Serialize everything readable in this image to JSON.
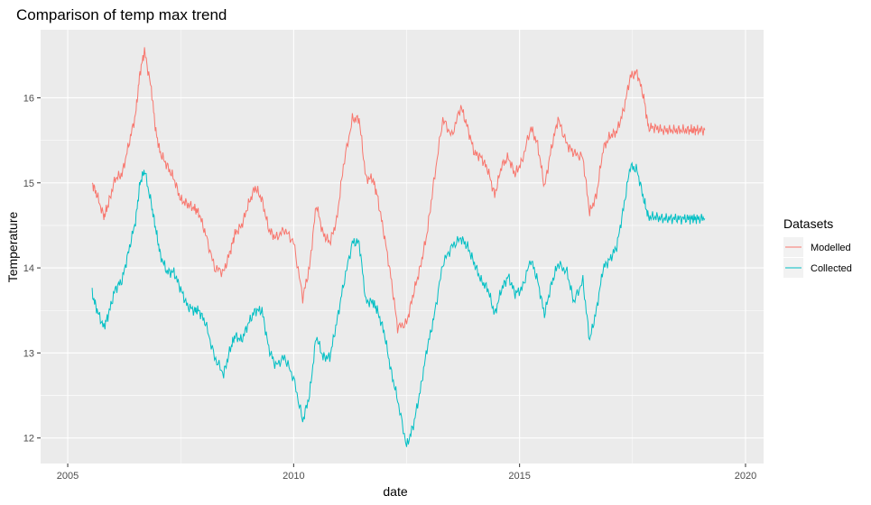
{
  "chart_data": {
    "type": "line",
    "title": "Comparison of temp max trend",
    "xlabel": "date",
    "ylabel": "Temperature",
    "x_ticks": [
      "2005",
      "2010",
      "2015",
      "2020"
    ],
    "y_ticks": [
      "12",
      "13",
      "14",
      "15",
      "16"
    ],
    "xlim": [
      2004.4,
      2020.4
    ],
    "ylim": [
      11.7,
      16.8
    ],
    "grid": true,
    "background": "#EBEBEB",
    "legend": {
      "title": "Datasets",
      "position": "right"
    },
    "series": [
      {
        "name": "Modelled",
        "color": "#F8766D",
        "x": [
          2005.54,
          2005.65,
          2005.8,
          2005.9,
          2006.05,
          2006.2,
          2006.35,
          2006.5,
          2006.6,
          2006.7,
          2006.85,
          2006.95,
          2007.05,
          2007.2,
          2007.35,
          2007.5,
          2007.65,
          2007.8,
          2007.9,
          2008.05,
          2008.25,
          2008.45,
          2008.6,
          2008.7,
          2008.85,
          2009.0,
          2009.15,
          2009.3,
          2009.45,
          2009.6,
          2009.8,
          2010.0,
          2010.2,
          2010.35,
          2010.5,
          2010.65,
          2010.8,
          2010.95,
          2011.1,
          2011.3,
          2011.45,
          2011.6,
          2011.75,
          2011.85,
          2012.0,
          2012.15,
          2012.3,
          2012.5,
          2012.65,
          2012.8,
          2012.95,
          2013.1,
          2013.3,
          2013.5,
          2013.7,
          2013.85,
          2014.0,
          2014.15,
          2014.3,
          2014.45,
          2014.6,
          2014.75,
          2014.9,
          2015.05,
          2015.25,
          2015.4,
          2015.55,
          2015.7,
          2015.85,
          2016.05,
          2016.2,
          2016.4,
          2016.55,
          2016.7,
          2016.85,
          2017.0,
          2017.15,
          2017.3,
          2017.45,
          2017.6,
          2017.75,
          2017.85,
          2018.0,
          2018.15,
          2018.3,
          2018.45,
          2018.6,
          2018.75,
          2018.85,
          2018.95,
          2019.1
        ],
        "y": [
          15.0,
          14.85,
          14.6,
          14.75,
          15.05,
          15.1,
          15.45,
          15.8,
          16.3,
          16.55,
          16.1,
          15.6,
          15.35,
          15.2,
          15.05,
          14.8,
          14.75,
          14.7,
          14.65,
          14.4,
          14.0,
          13.95,
          14.2,
          14.4,
          14.5,
          14.75,
          14.95,
          14.8,
          14.45,
          14.35,
          14.45,
          14.3,
          13.65,
          14.0,
          14.75,
          14.4,
          14.3,
          14.55,
          15.2,
          15.75,
          15.75,
          15.05,
          15.05,
          14.85,
          14.4,
          13.9,
          13.3,
          13.35,
          13.7,
          14.0,
          14.4,
          15.0,
          15.75,
          15.55,
          15.9,
          15.65,
          15.35,
          15.3,
          15.15,
          14.85,
          15.2,
          15.3,
          15.1,
          15.25,
          15.65,
          15.45,
          14.95,
          15.4,
          15.75,
          15.45,
          15.35,
          15.3,
          14.65,
          14.85,
          15.4,
          15.55,
          15.6,
          15.85,
          16.25,
          16.3,
          16.0,
          15.65,
          15.65,
          15.62,
          15.62,
          15.62,
          15.62,
          15.62,
          15.62,
          15.62,
          15.62
        ]
      },
      {
        "name": "Collected",
        "color": "#00BFC4",
        "x": [
          2005.54,
          2005.65,
          2005.8,
          2005.9,
          2006.05,
          2006.2,
          2006.35,
          2006.5,
          2006.6,
          2006.7,
          2006.85,
          2006.95,
          2007.05,
          2007.2,
          2007.35,
          2007.5,
          2007.65,
          2007.8,
          2007.9,
          2008.05,
          2008.25,
          2008.45,
          2008.6,
          2008.7,
          2008.85,
          2009.0,
          2009.15,
          2009.3,
          2009.45,
          2009.6,
          2009.8,
          2010.0,
          2010.2,
          2010.35,
          2010.5,
          2010.65,
          2010.8,
          2010.95,
          2011.1,
          2011.3,
          2011.45,
          2011.6,
          2011.75,
          2011.85,
          2012.0,
          2012.15,
          2012.3,
          2012.5,
          2012.65,
          2012.8,
          2012.95,
          2013.1,
          2013.3,
          2013.5,
          2013.7,
          2013.85,
          2014.0,
          2014.15,
          2014.3,
          2014.45,
          2014.6,
          2014.75,
          2014.9,
          2015.05,
          2015.25,
          2015.4,
          2015.55,
          2015.7,
          2015.85,
          2016.05,
          2016.2,
          2016.4,
          2016.55,
          2016.7,
          2016.85,
          2017.0,
          2017.15,
          2017.3,
          2017.45,
          2017.6,
          2017.75,
          2017.85,
          2018.0,
          2018.15,
          2018.3,
          2018.45,
          2018.6,
          2018.75,
          2018.85,
          2018.95,
          2019.1
        ],
        "y": [
          13.7,
          13.5,
          13.3,
          13.45,
          13.75,
          13.85,
          14.2,
          14.55,
          15.0,
          15.15,
          14.75,
          14.45,
          14.15,
          13.95,
          13.95,
          13.75,
          13.55,
          13.5,
          13.5,
          13.35,
          12.95,
          12.75,
          13.05,
          13.2,
          13.15,
          13.35,
          13.5,
          13.5,
          13.05,
          12.85,
          12.95,
          12.7,
          12.2,
          12.5,
          13.2,
          12.95,
          12.95,
          13.35,
          13.8,
          14.3,
          14.3,
          13.6,
          13.6,
          13.5,
          13.25,
          12.8,
          12.45,
          11.9,
          12.15,
          12.55,
          13.05,
          13.4,
          14.05,
          14.25,
          14.35,
          14.25,
          14.05,
          13.85,
          13.75,
          13.45,
          13.75,
          13.9,
          13.7,
          13.75,
          14.1,
          13.85,
          13.45,
          13.8,
          14.05,
          13.95,
          13.6,
          13.85,
          13.15,
          13.5,
          14.0,
          14.1,
          14.25,
          14.7,
          15.2,
          15.15,
          14.8,
          14.6,
          14.6,
          14.58,
          14.58,
          14.58,
          14.58,
          14.58,
          14.58,
          14.58,
          14.58
        ]
      }
    ]
  }
}
